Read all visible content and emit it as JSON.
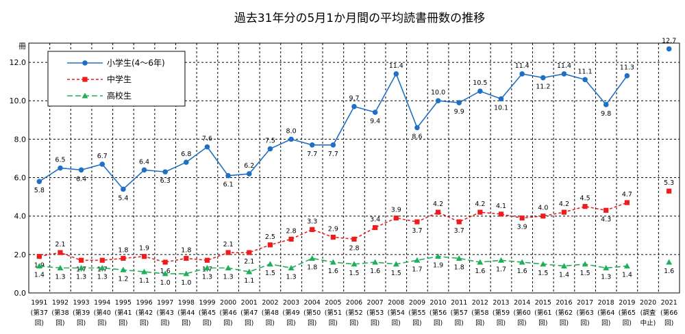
{
  "chart_data": {
    "type": "line",
    "title": "過去31年分の5月1か月間の平均読書冊数の推移",
    "ylabel": "冊",
    "ylim": [
      0,
      13
    ],
    "yticks": [
      "0.0",
      "2.0",
      "4.0",
      "6.0",
      "8.0",
      "10.0",
      "12.0"
    ],
    "grid": true,
    "legend_position": "top-left",
    "categories": [
      "1991",
      "1992",
      "1993",
      "1994",
      "1995",
      "1996",
      "1997",
      "1998",
      "1999",
      "2000",
      "2001",
      "2002",
      "2003",
      "2004",
      "2005",
      "2006",
      "2007",
      "2008",
      "2009",
      "2010",
      "2011",
      "2012",
      "2013",
      "2014",
      "2015",
      "2016",
      "2017",
      "2018",
      "2019",
      "2020",
      "2021"
    ],
    "sublabels": [
      [
        "(第37",
        "回)"
      ],
      [
        "(第38",
        "回)"
      ],
      [
        "(第39",
        "回)"
      ],
      [
        "(第40",
        "回)"
      ],
      [
        "(第41",
        "回)"
      ],
      [
        "(第42",
        "回)"
      ],
      [
        "(第43",
        "回)"
      ],
      [
        "(第44",
        "回)"
      ],
      [
        "(第45",
        "回)"
      ],
      [
        "(第46",
        "回)"
      ],
      [
        "(第47",
        "回)"
      ],
      [
        "(第48",
        "回)"
      ],
      [
        "(第49",
        "回)"
      ],
      [
        "(第50",
        "回)"
      ],
      [
        "(第51",
        "回)"
      ],
      [
        "(第52",
        "回)"
      ],
      [
        "(第53",
        "回)"
      ],
      [
        "(第54",
        "回)"
      ],
      [
        "(第55",
        "回)"
      ],
      [
        "(第56",
        "回)"
      ],
      [
        "(第57",
        "回)"
      ],
      [
        "(第58",
        "回)"
      ],
      [
        "(第59",
        "回)"
      ],
      [
        "(第60",
        "回)"
      ],
      [
        "(第61",
        "回)"
      ],
      [
        "(第62",
        "回)"
      ],
      [
        "(第63",
        "回)"
      ],
      [
        "(第64",
        "回)"
      ],
      [
        "(第65",
        "回)"
      ],
      [
        "(調査",
        "中止)"
      ],
      [
        "(第66",
        "回)"
      ]
    ],
    "series": [
      {
        "name": "小学生(4～6年)",
        "color": "#1f6fc4",
        "marker": "circle",
        "dash": "none",
        "values": [
          5.8,
          6.5,
          6.4,
          6.7,
          5.4,
          6.4,
          6.3,
          6.8,
          7.6,
          6.1,
          6.2,
          7.5,
          8.0,
          7.7,
          7.7,
          9.7,
          9.4,
          11.4,
          8.6,
          10.0,
          9.9,
          10.5,
          10.1,
          11.4,
          11.2,
          11.4,
          11.1,
          9.8,
          11.3,
          null,
          12.7
        ],
        "labels": [
          "5.8",
          "6.5",
          "6.4",
          "6.7",
          "5.4",
          "6.4",
          "6.3",
          "6.8",
          "7.6",
          "6.1",
          "6.2",
          "7.5",
          "8.0",
          "7.7",
          "7.7",
          "9.7",
          "9.4",
          "11.4",
          "8.6",
          "10.0",
          "9.9",
          "10.5",
          "10.1",
          "11.4",
          "11.2",
          "11.4",
          "11.1",
          "9.8",
          "11.3",
          "",
          "12.7"
        ]
      },
      {
        "name": "中学生",
        "color": "#ee1c1c",
        "marker": "square",
        "dash": "4,3",
        "values": [
          1.9,
          2.1,
          1.7,
          1.7,
          1.8,
          1.9,
          1.6,
          1.8,
          1.7,
          2.1,
          2.1,
          2.5,
          2.8,
          3.3,
          2.9,
          2.8,
          3.4,
          3.9,
          3.7,
          4.2,
          3.7,
          4.2,
          4.1,
          3.9,
          4.0,
          4.2,
          4.5,
          4.3,
          4.7,
          null,
          5.3
        ],
        "labels": [
          "1.9",
          "2.1",
          "1.7",
          "1.7",
          "1.8",
          "1.9",
          "1.6",
          "1.8",
          "1.7",
          "2.1",
          "2.1",
          "2.5",
          "2.8",
          "3.3",
          "2.9",
          "2.8",
          "3.4",
          "3.9",
          "3.7",
          "4.2",
          "3.7",
          "4.2",
          "4.1",
          "3.9",
          "4.0",
          "4.2",
          "4.5",
          "4.3",
          "4.7",
          "",
          "5.3"
        ]
      },
      {
        "name": "高校生",
        "color": "#1fae5a",
        "marker": "triangle",
        "dash": "8,4",
        "values": [
          1.4,
          1.3,
          1.3,
          1.3,
          1.2,
          1.1,
          1.0,
          1.0,
          1.3,
          1.3,
          1.1,
          1.5,
          1.3,
          1.8,
          1.6,
          1.5,
          1.6,
          1.5,
          1.7,
          1.9,
          1.8,
          1.6,
          1.7,
          1.6,
          1.5,
          1.4,
          1.5,
          1.3,
          1.4,
          null,
          1.6
        ],
        "labels": [
          "1.4",
          "1.3",
          "1.3",
          "1.3",
          "1.2",
          "1.1",
          "1.0",
          "1.0",
          "1.3",
          "1.3",
          "1.1",
          "1.5",
          "1.3",
          "1.8",
          "1.6",
          "1.5",
          "1.6",
          "1.5",
          "1.7",
          "1.9",
          "1.8",
          "1.6",
          "1.7",
          "1.6",
          "1.5",
          "1.4",
          "1.5",
          "1.3",
          "1.4",
          "",
          "1.6"
        ]
      }
    ]
  }
}
